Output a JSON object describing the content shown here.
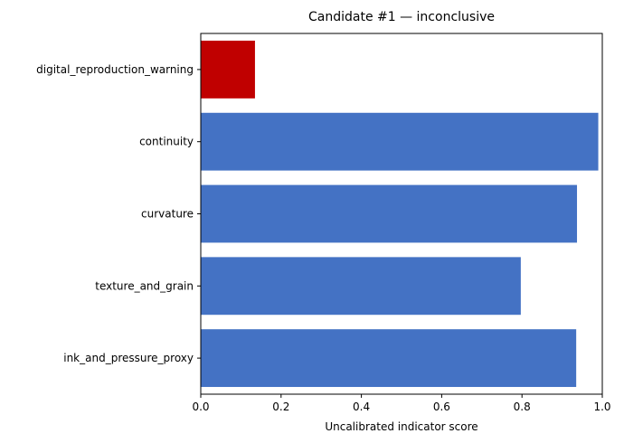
{
  "chart_data": {
    "type": "bar",
    "orientation": "horizontal",
    "title": "Candidate #1 — inconclusive",
    "xlabel": "Uncalibrated indicator score",
    "ylabel": "",
    "xlim": [
      0,
      1.0
    ],
    "xticks": [
      "0.0",
      "0.2",
      "0.4",
      "0.6",
      "0.8",
      "1.0"
    ],
    "grid": false,
    "categories": [
      "digital_reproduction_warning",
      "continuity",
      "curvature",
      "texture_and_grain",
      "ink_and_pressure_proxy"
    ],
    "values": [
      0.135,
      0.99,
      0.937,
      0.797,
      0.935
    ],
    "colors": [
      "#c00000",
      "#4472c4",
      "#4472c4",
      "#4472c4",
      "#4472c4"
    ]
  }
}
